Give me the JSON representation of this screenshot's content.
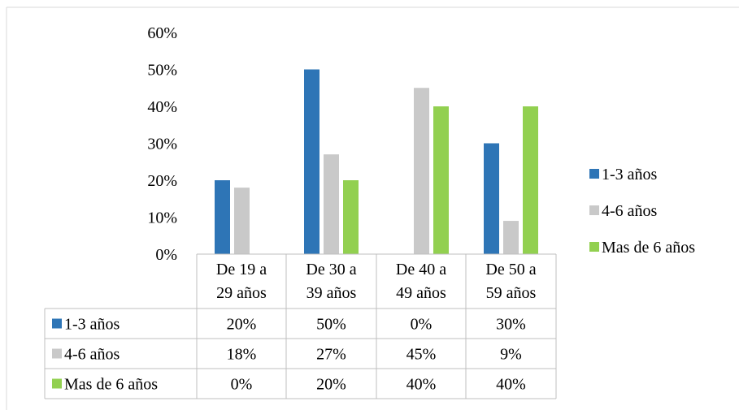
{
  "chart_data": {
    "type": "bar",
    "categories": [
      [
        "De 19 a",
        "29 años"
      ],
      [
        "De 30 a",
        "39 años"
      ],
      [
        "De 40 a",
        "49 años"
      ],
      [
        "De 50 a",
        "59 años"
      ]
    ],
    "series": [
      {
        "name": "1-3 años",
        "values": [
          0.2,
          0.5,
          0.0,
          0.3
        ],
        "labels": [
          "20%",
          "50%",
          "0%",
          "30%"
        ],
        "color": "#2E75B6"
      },
      {
        "name": "4-6 años",
        "values": [
          0.18,
          0.27,
          0.45,
          0.09
        ],
        "labels": [
          "18%",
          "27%",
          "45%",
          "9%"
        ],
        "color": "#C9C9C9"
      },
      {
        "name": "Mas de 6 años",
        "values": [
          0.0,
          0.2,
          0.4,
          0.4
        ],
        "labels": [
          "0%",
          "20%",
          "40%",
          "40%"
        ],
        "color": "#92D050"
      }
    ],
    "y_ticks": [
      "0%",
      "10%",
      "20%",
      "30%",
      "40%",
      "50%",
      "60%"
    ],
    "ylim": [
      0,
      0.6
    ],
    "grid": false,
    "legend": "right",
    "data_table": true,
    "title": "",
    "xlabel": "",
    "ylabel": ""
  }
}
